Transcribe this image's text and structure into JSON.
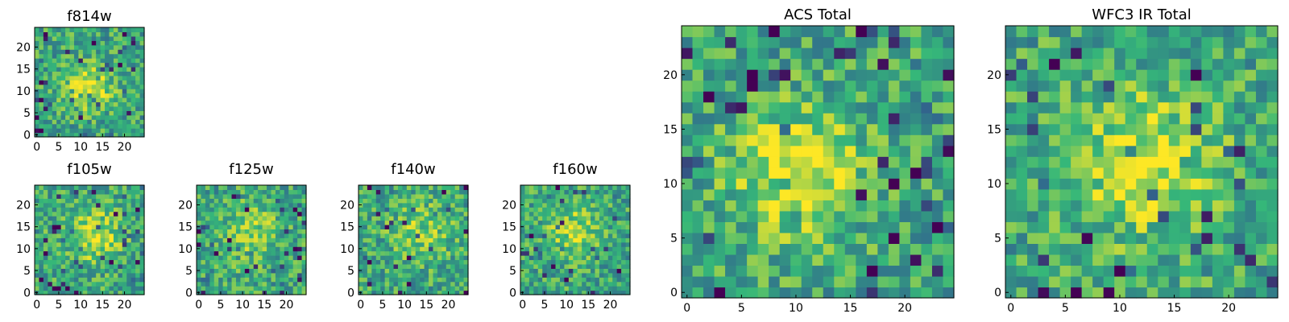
{
  "figure": {
    "background": "#ffffff",
    "colormap": [
      "#440154",
      "#31688e",
      "#35b779",
      "#fde725"
    ]
  },
  "chart_data": [
    {
      "type": "heatmap",
      "title": "f814w",
      "size": 25,
      "xticks": [
        0,
        5,
        10,
        15,
        20
      ],
      "yticks": [
        0,
        5,
        10,
        15,
        20
      ],
      "xlim": [
        -0.5,
        24.5
      ],
      "ylim": [
        -0.5,
        24.5
      ],
      "seed": 11,
      "source": {
        "cx": 12,
        "cy": 11,
        "amp": 0.35,
        "sigma": 3.5
      }
    },
    {
      "type": "heatmap",
      "title": "f105w",
      "size": 25,
      "xticks": [
        0,
        5,
        10,
        15,
        20
      ],
      "yticks": [
        0,
        5,
        10,
        15,
        20
      ],
      "xlim": [
        -0.5,
        24.5
      ],
      "ylim": [
        -0.5,
        24.5
      ],
      "seed": 23,
      "source": {
        "cx": 13,
        "cy": 13,
        "amp": 0.3,
        "sigma": 4.5
      }
    },
    {
      "type": "heatmap",
      "title": "f125w",
      "size": 25,
      "xticks": [
        0,
        5,
        10,
        15,
        20
      ],
      "yticks": [
        0,
        5,
        10,
        15,
        20
      ],
      "xlim": [
        -0.5,
        24.5
      ],
      "ylim": [
        -0.5,
        24.5
      ],
      "seed": 37,
      "source": {
        "cx": 12,
        "cy": 14,
        "amp": 0.2,
        "sigma": 5
      }
    },
    {
      "type": "heatmap",
      "title": "f140w",
      "size": 25,
      "xticks": [
        0,
        5,
        10,
        15,
        20
      ],
      "yticks": [
        0,
        5,
        10,
        15,
        20
      ],
      "xlim": [
        -0.5,
        24.5
      ],
      "ylim": [
        -0.5,
        24.5
      ],
      "seed": 41,
      "source": {
        "cx": 14,
        "cy": 14,
        "amp": 0.2,
        "sigma": 5
      }
    },
    {
      "type": "heatmap",
      "title": "f160w",
      "size": 25,
      "xticks": [
        0,
        5,
        10,
        15,
        20
      ],
      "yticks": [
        0,
        5,
        10,
        15,
        20
      ],
      "xlim": [
        -0.5,
        24.5
      ],
      "ylim": [
        -0.5,
        24.5
      ],
      "seed": 53,
      "source": {
        "cx": 12,
        "cy": 14,
        "amp": 0.25,
        "sigma": 4.5
      }
    },
    {
      "type": "heatmap",
      "title": "ACS Total",
      "size": 25,
      "xticks": [
        0,
        5,
        10,
        15,
        20
      ],
      "yticks": [
        0,
        5,
        10,
        15,
        20
      ],
      "xlim": [
        -0.5,
        24.5
      ],
      "ylim": [
        -0.5,
        24.5
      ],
      "seed": 67,
      "source": {
        "cx": 10,
        "cy": 11,
        "amp": 0.4,
        "sigma": 4
      }
    },
    {
      "type": "heatmap",
      "title": "WFC3 IR Total",
      "size": 25,
      "xticks": [
        0,
        5,
        10,
        15,
        20
      ],
      "yticks": [
        0,
        5,
        10,
        15,
        20
      ],
      "xlim": [
        -0.5,
        24.5
      ],
      "ylim": [
        -0.5,
        24.5
      ],
      "seed": 79,
      "source": {
        "cx": 12,
        "cy": 12,
        "amp": 0.3,
        "sigma": 5
      }
    }
  ]
}
